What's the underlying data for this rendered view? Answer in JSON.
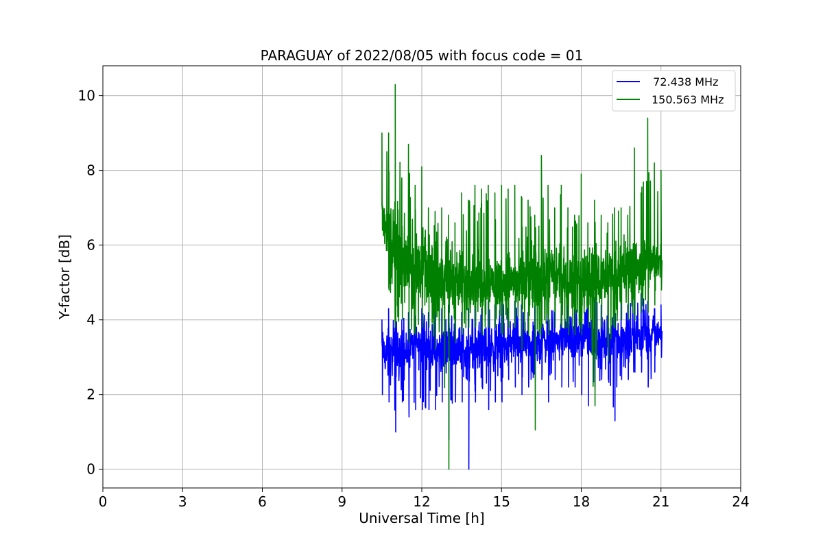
{
  "chart_data": {
    "type": "line",
    "title": "PARAGUAY of 2022/08/05 with focus code = 01",
    "xlabel": "Universal Time [h]",
    "ylabel": "Y-factor [dB]",
    "xlim": [
      0,
      24
    ],
    "ylim": [
      -0.5,
      10.8
    ],
    "xticks": [
      0,
      3,
      6,
      9,
      12,
      15,
      18,
      21,
      24
    ],
    "yticks": [
      0,
      2,
      4,
      6,
      8,
      10
    ],
    "xtick_labels": [
      "0",
      "3",
      "6",
      "9",
      "12",
      "15",
      "18",
      "21",
      "24"
    ],
    "ytick_labels": [
      "0",
      "2",
      "4",
      "6",
      "8",
      "10"
    ],
    "grid": true,
    "legend_position": "top-right",
    "series": [
      {
        "name": "  72.438 MHz",
        "color": "#0000ff",
        "x": [
          10.5,
          10.75,
          11.0,
          11.25,
          11.5,
          11.75,
          12.0,
          12.25,
          12.5,
          12.75,
          13.0,
          13.25,
          13.5,
          13.75,
          14.0,
          14.25,
          14.5,
          14.75,
          15.0,
          15.25,
          15.5,
          15.75,
          16.0,
          16.25,
          16.5,
          16.75,
          17.0,
          17.25,
          17.5,
          17.75,
          18.0,
          18.25,
          18.5,
          18.75,
          19.0,
          19.25,
          19.5,
          19.75,
          20.0,
          20.25,
          20.5,
          20.75,
          21.0
        ],
        "y": [
          3.2,
          3.0,
          3.1,
          2.9,
          3.2,
          3.4,
          3.2,
          3.3,
          3.1,
          3.2,
          3.4,
          3.3,
          3.2,
          3.1,
          3.2,
          3.4,
          3.3,
          3.3,
          3.2,
          3.3,
          3.5,
          3.4,
          3.4,
          3.3,
          3.4,
          3.5,
          3.4,
          3.5,
          3.6,
          3.4,
          3.5,
          3.5,
          3.6,
          3.4,
          3.5,
          3.6,
          3.5,
          3.4,
          3.5,
          3.6,
          3.5,
          3.6,
          3.7
        ],
        "min_envelope": [
          2.0,
          1.8,
          1.0,
          1.8,
          1.4,
          1.6,
          1.6,
          1.6,
          1.6,
          1.8,
          0.8,
          1.8,
          1.8,
          0.0,
          1.8,
          2.2,
          1.6,
          1.8,
          1.8,
          2.4,
          2.2,
          2.0,
          2.2,
          2.4,
          2.4,
          1.8,
          2.4,
          2.2,
          2.2,
          2.2,
          2.0,
          1.7,
          2.2,
          2.4,
          2.4,
          1.3,
          2.4,
          2.4,
          2.6,
          2.6,
          2.2,
          2.6,
          3.0
        ],
        "max_envelope": [
          4.0,
          4.3,
          4.1,
          4.0,
          4.2,
          4.1,
          4.3,
          4.2,
          4.2,
          4.3,
          4.4,
          4.5,
          4.2,
          4.3,
          4.4,
          4.3,
          4.5,
          4.4,
          4.6,
          4.3,
          4.5,
          4.4,
          4.2,
          4.6,
          4.5,
          4.4,
          4.2,
          4.4,
          4.5,
          4.3,
          4.4,
          4.5,
          4.6,
          4.4,
          4.5,
          4.7,
          4.5,
          4.4,
          4.6,
          4.7,
          4.5,
          4.3,
          4.4
        ]
      },
      {
        "name": "150.563 MHz",
        "color": "#008000",
        "x": [
          10.5,
          10.75,
          11.0,
          11.25,
          11.5,
          11.75,
          12.0,
          12.25,
          12.5,
          12.75,
          13.0,
          13.25,
          13.5,
          13.75,
          14.0,
          14.25,
          14.5,
          14.75,
          15.0,
          15.25,
          15.5,
          15.75,
          16.0,
          16.25,
          16.5,
          16.75,
          17.0,
          17.25,
          17.5,
          17.75,
          18.0,
          18.25,
          18.5,
          18.75,
          19.0,
          19.25,
          19.5,
          19.75,
          20.0,
          20.25,
          20.5,
          20.75,
          21.0
        ],
        "y": [
          7.0,
          6.2,
          6.0,
          5.7,
          5.6,
          5.5,
          5.4,
          5.3,
          5.2,
          5.1,
          5.1,
          5.0,
          5.0,
          5.0,
          5.1,
          5.0,
          5.1,
          5.0,
          5.0,
          5.1,
          5.0,
          5.0,
          5.1,
          5.0,
          5.1,
          5.1,
          5.2,
          5.1,
          5.0,
          5.1,
          5.1,
          5.0,
          5.1,
          5.1,
          5.2,
          5.2,
          5.3,
          5.3,
          5.4,
          5.4,
          5.5,
          5.5,
          5.6
        ],
        "min_envelope": [
          6.4,
          4.8,
          3.8,
          4.0,
          3.4,
          3.6,
          3.8,
          3.8,
          3.2,
          3.6,
          0.0,
          3.4,
          3.6,
          3.8,
          3.8,
          3.6,
          3.8,
          3.8,
          3.6,
          3.8,
          3.8,
          3.2,
          3.6,
          1.05,
          3.8,
          3.6,
          3.8,
          3.8,
          3.6,
          3.6,
          3.6,
          3.8,
          1.7,
          3.8,
          2.9,
          3.8,
          4.0,
          4.0,
          4.0,
          4.2,
          4.2,
          4.4,
          4.8
        ],
        "max_envelope": [
          9.0,
          9.0,
          10.3,
          7.8,
          8.7,
          7.6,
          8.1,
          7.0,
          6.9,
          7.0,
          6.8,
          6.6,
          7.4,
          7.2,
          7.6,
          7.5,
          7.6,
          7.4,
          7.6,
          7.5,
          7.6,
          7.3,
          7.2,
          6.8,
          8.4,
          7.6,
          7.0,
          7.6,
          7.0,
          6.8,
          7.9,
          6.6,
          7.2,
          6.8,
          6.6,
          7.0,
          7.0,
          6.8,
          8.6,
          7.4,
          9.4,
          8.2,
          8.0
        ]
      }
    ]
  }
}
